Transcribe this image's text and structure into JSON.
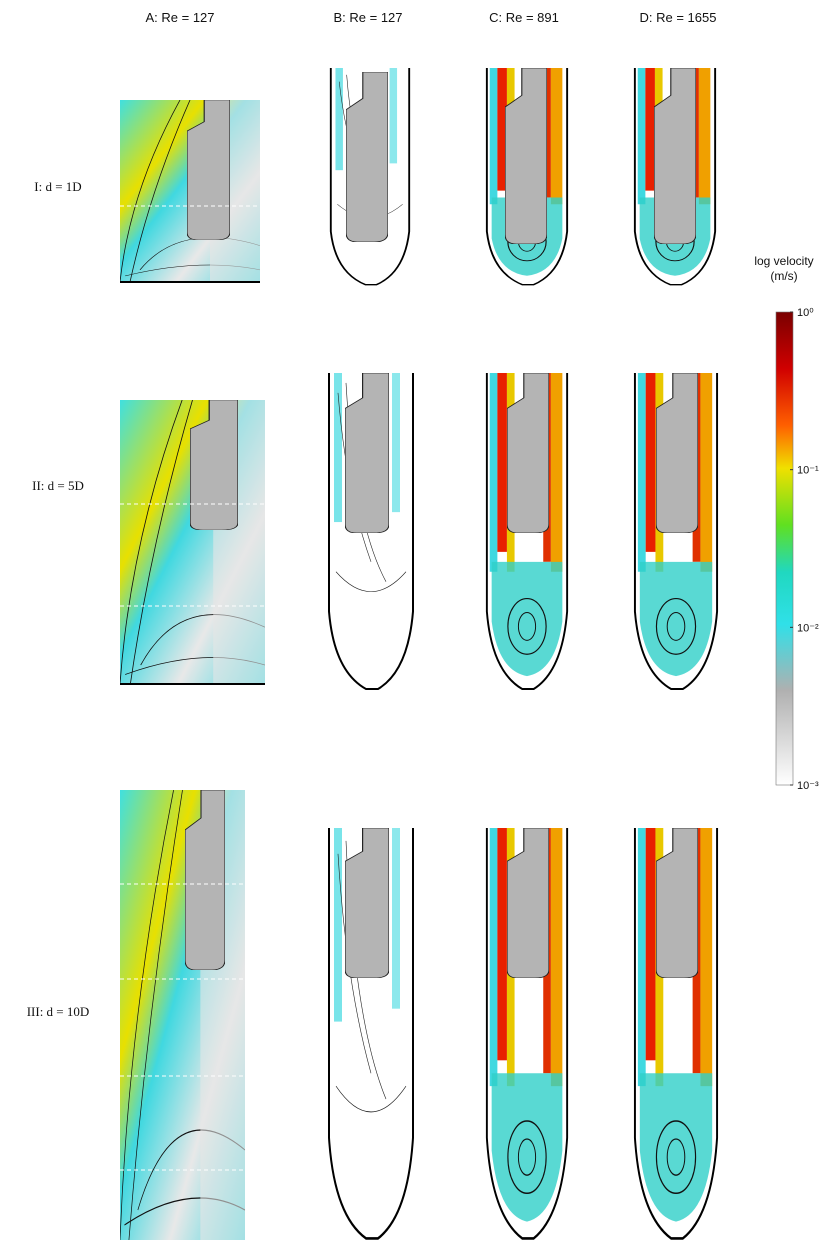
{
  "figure": {
    "columns": [
      "A:  Re = 127",
      "B: Re = 127",
      "C: Re = 891",
      "D:  Re = 1655"
    ],
    "rows": [
      "I: d = 1D",
      "II: d = 5D",
      "III: d = 10D"
    ],
    "colorbar": {
      "title": "log velocity (m/s)",
      "scale": "log",
      "lim": [
        0.001,
        1
      ],
      "ticks": [
        {
          "value": 1,
          "label": "10⁰"
        },
        {
          "value": 0.1,
          "label": "10⁻¹"
        },
        {
          "value": 0.01,
          "label": "10⁻²"
        },
        {
          "value": 0.001,
          "label": "10⁻³"
        }
      ]
    }
  }
}
